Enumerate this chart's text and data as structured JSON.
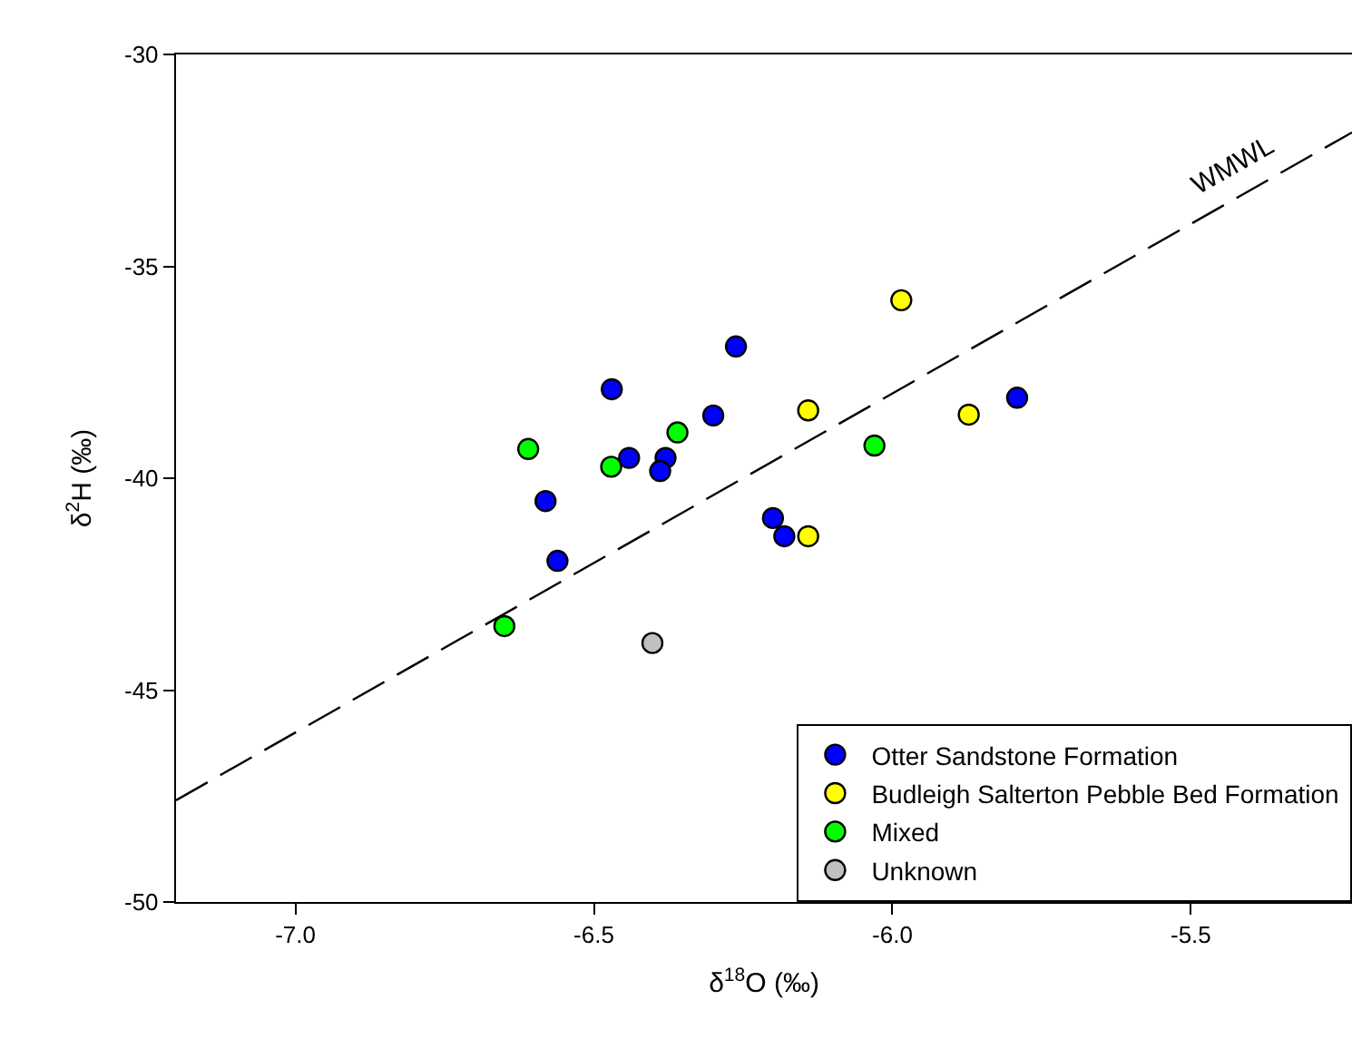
{
  "chart_data": {
    "type": "scatter",
    "xlabel": "δ$^{18}$O (‰)",
    "ylabel": "δ$^{2}$H (‰)",
    "xlim": [
      -7.2,
      -5.23
    ],
    "xticks": [
      {
        "value": -7,
        "label": "-7.0"
      },
      {
        "value": -6.5,
        "label": "-6.5"
      },
      {
        "value": -6,
        "label": "-6.0"
      },
      {
        "value": -5.5,
        "label": "-5.5"
      }
    ],
    "ylim": [
      -50,
      -30
    ],
    "yticks": [
      -50,
      -45,
      -40,
      -35,
      -30
    ],
    "grid": false,
    "legend": "bottom right",
    "marker": "circle",
    "series": [
      {
        "name": "Otter Sandstone Formation",
        "color": "#0000ff",
        "x": [
          -6.262,
          -6.47,
          -6.3,
          -6.441,
          -6.38,
          -6.389,
          -6.581,
          -6.561,
          -6.2,
          -6.181,
          -5.791
        ],
        "values": [
          -36.89,
          -37.9,
          -38.52,
          -39.52,
          -39.52,
          -39.83,
          -40.54,
          -41.95,
          -40.94,
          -41.37,
          -38.1
        ]
      },
      {
        "name": "Budleigh Salterton Pebble Bed Formation",
        "color": "#ffff00",
        "x": [
          -6.141,
          -6.141,
          -5.872,
          -5.985
        ],
        "values": [
          -38.4,
          -41.37,
          -38.5,
          -35.8
        ]
      },
      {
        "name": "Mixed",
        "color": "#00ff00",
        "x": [
          -6.61,
          -6.471,
          -6.36,
          -6.65,
          -6.03
        ],
        "values": [
          -39.31,
          -39.73,
          -38.92,
          -43.49,
          -39.23
        ]
      },
      {
        "name": "Unknown",
        "color": "#c0c0c0",
        "x": [
          -6.402
        ],
        "values": [
          -43.89
        ]
      },
      {
        "name": "WMWL",
        "type": "line",
        "color": "#000000",
        "line_style": "dashed",
        "marker": "none",
        "x": [
          -7.2,
          -5.23
        ],
        "values": [
          -47.6,
          -31.84
        ]
      }
    ]
  }
}
